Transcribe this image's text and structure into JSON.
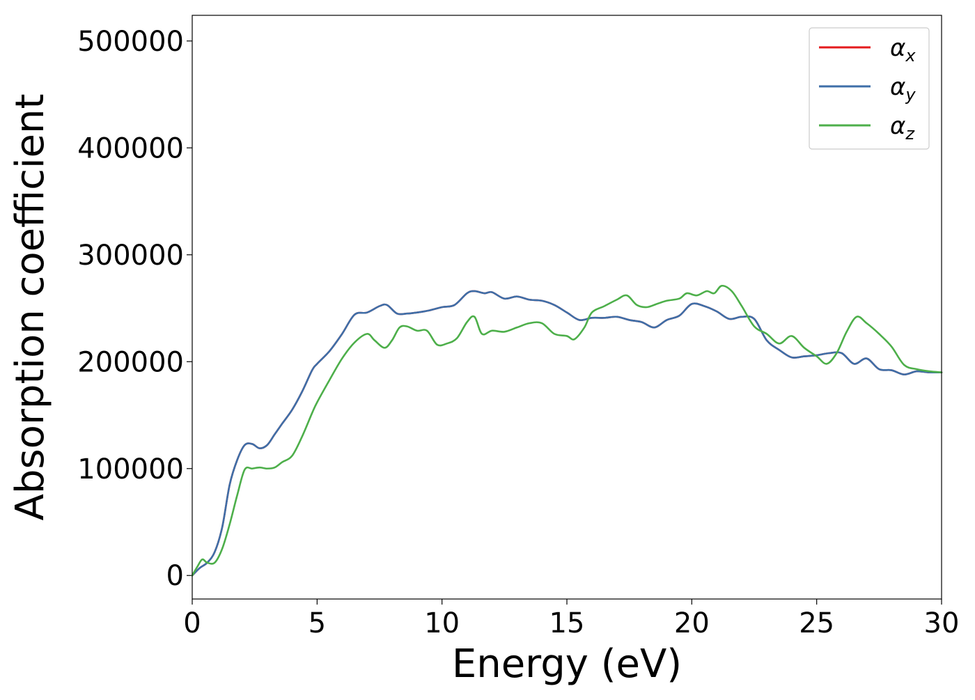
{
  "chart_data": {
    "type": "line",
    "xlabel": "Energy (eV)",
    "ylabel": "Absorption coefficient",
    "xlim": [
      0,
      30
    ],
    "ylim": [
      -22000,
      524000
    ],
    "x_ticks": [
      0,
      5,
      10,
      15,
      20,
      25,
      30
    ],
    "y_ticks": [
      0,
      100000,
      200000,
      300000,
      400000,
      500000
    ],
    "x_tick_labels": [
      "0",
      "5",
      "10",
      "15",
      "20",
      "25",
      "30"
    ],
    "y_tick_labels": [
      "0",
      "100000",
      "200000",
      "300000",
      "400000",
      "500000"
    ],
    "grid": false,
    "legend_position": "top-right",
    "series": [
      {
        "name": "α",
        "subscript": "x",
        "color": "#e41a1c",
        "note_hidden_behind_y": true,
        "x": [
          0,
          0.3,
          0.6,
          0.9,
          1.2,
          1.5,
          1.8,
          2.1,
          2.4,
          2.7,
          3.0,
          3.3,
          3.6,
          4.0,
          4.4,
          4.8,
          5.0,
          5.5,
          6.0,
          6.5,
          7.0,
          7.5,
          7.8,
          8.2,
          8.6,
          9.0,
          9.5,
          10.0,
          10.5,
          11.0,
          11.3,
          11.7,
          12.0,
          12.5,
          13.0,
          13.5,
          14.0,
          14.5,
          15.0,
          15.5,
          16.0,
          16.5,
          17.0,
          17.5,
          18.0,
          18.5,
          19.0,
          19.5,
          20.0,
          20.5,
          21.0,
          21.5,
          22.0,
          22.5,
          23.0,
          23.5,
          24.0,
          24.5,
          25.0,
          25.5,
          26.0,
          26.5,
          27.0,
          27.5,
          28.0,
          28.5,
          29.0,
          29.5,
          30.0
        ],
        "y": [
          0,
          7000,
          12000,
          22000,
          45000,
          85000,
          108000,
          122000,
          123000,
          119000,
          122000,
          132000,
          142000,
          155000,
          172000,
          192000,
          198000,
          210000,
          226000,
          244000,
          246000,
          252000,
          253000,
          245000,
          245000,
          246000,
          248000,
          251000,
          253000,
          264000,
          266000,
          264000,
          265000,
          259000,
          261000,
          258000,
          257000,
          253000,
          246000,
          239000,
          241000,
          241000,
          242000,
          239000,
          237000,
          232000,
          239000,
          243000,
          254000,
          252000,
          247000,
          240000,
          242000,
          240000,
          220000,
          211000,
          204000,
          205000,
          206000,
          208000,
          208000,
          198000,
          203000,
          193000,
          192000,
          188000,
          191000,
          190000,
          190000
        ]
      },
      {
        "name": "α",
        "subscript": "y",
        "color": "#3e6fa8",
        "x": [
          0,
          0.3,
          0.6,
          0.9,
          1.2,
          1.5,
          1.8,
          2.1,
          2.4,
          2.7,
          3.0,
          3.3,
          3.6,
          4.0,
          4.4,
          4.8,
          5.0,
          5.5,
          6.0,
          6.5,
          7.0,
          7.5,
          7.8,
          8.2,
          8.6,
          9.0,
          9.5,
          10.0,
          10.5,
          11.0,
          11.3,
          11.7,
          12.0,
          12.5,
          13.0,
          13.5,
          14.0,
          14.5,
          15.0,
          15.5,
          16.0,
          16.5,
          17.0,
          17.5,
          18.0,
          18.5,
          19.0,
          19.5,
          20.0,
          20.5,
          21.0,
          21.5,
          22.0,
          22.5,
          23.0,
          23.5,
          24.0,
          24.5,
          25.0,
          25.5,
          26.0,
          26.5,
          27.0,
          27.5,
          28.0,
          28.5,
          29.0,
          29.5,
          30.0
        ],
        "y": [
          0,
          7000,
          12000,
          22000,
          45000,
          85000,
          108000,
          122000,
          123000,
          119000,
          122000,
          132000,
          142000,
          155000,
          172000,
          192000,
          198000,
          210000,
          226000,
          244000,
          246000,
          252000,
          253000,
          245000,
          245000,
          246000,
          248000,
          251000,
          253000,
          264000,
          266000,
          264000,
          265000,
          259000,
          261000,
          258000,
          257000,
          253000,
          246000,
          239000,
          241000,
          241000,
          242000,
          239000,
          237000,
          232000,
          239000,
          243000,
          254000,
          252000,
          247000,
          240000,
          242000,
          240000,
          220000,
          211000,
          204000,
          205000,
          206000,
          208000,
          208000,
          198000,
          203000,
          193000,
          192000,
          188000,
          191000,
          190000,
          190000
        ]
      },
      {
        "name": "α",
        "subscript": "z",
        "color": "#4daf4a",
        "x": [
          0,
          0.2,
          0.4,
          0.6,
          0.9,
          1.2,
          1.5,
          1.8,
          2.1,
          2.4,
          2.7,
          3.0,
          3.3,
          3.6,
          4.0,
          4.4,
          4.8,
          5.0,
          5.5,
          6.0,
          6.5,
          7.0,
          7.3,
          7.7,
          8.0,
          8.3,
          8.6,
          9.0,
          9.4,
          9.8,
          10.2,
          10.6,
          11.0,
          11.3,
          11.6,
          12.0,
          12.5,
          13.0,
          13.5,
          14.0,
          14.5,
          15.0,
          15.3,
          15.7,
          16.0,
          16.5,
          17.0,
          17.4,
          17.8,
          18.2,
          18.6,
          19.0,
          19.5,
          19.8,
          20.2,
          20.6,
          20.9,
          21.2,
          21.6,
          22.0,
          22.5,
          23.0,
          23.5,
          24.0,
          24.5,
          25.0,
          25.4,
          25.8,
          26.2,
          26.6,
          27.0,
          27.5,
          28.0,
          28.5,
          29.0,
          29.5,
          30.0
        ],
        "y": [
          0,
          8000,
          15000,
          12000,
          12000,
          25000,
          48000,
          75000,
          99000,
          100000,
          101000,
          100000,
          101000,
          106000,
          112000,
          130000,
          152000,
          162000,
          183000,
          203000,
          218000,
          226000,
          220000,
          213000,
          220000,
          232000,
          233000,
          229000,
          229000,
          216000,
          217000,
          222000,
          237000,
          242000,
          226000,
          229000,
          228000,
          232000,
          236000,
          236000,
          226000,
          224000,
          221000,
          232000,
          246000,
          252000,
          258000,
          262000,
          253000,
          251000,
          254000,
          257000,
          259000,
          264000,
          262000,
          266000,
          264000,
          271000,
          266000,
          252000,
          233000,
          226000,
          217000,
          224000,
          213000,
          205000,
          198000,
          208000,
          228000,
          242000,
          236000,
          226000,
          214000,
          197000,
          193000,
          191000,
          190000
        ]
      }
    ]
  }
}
